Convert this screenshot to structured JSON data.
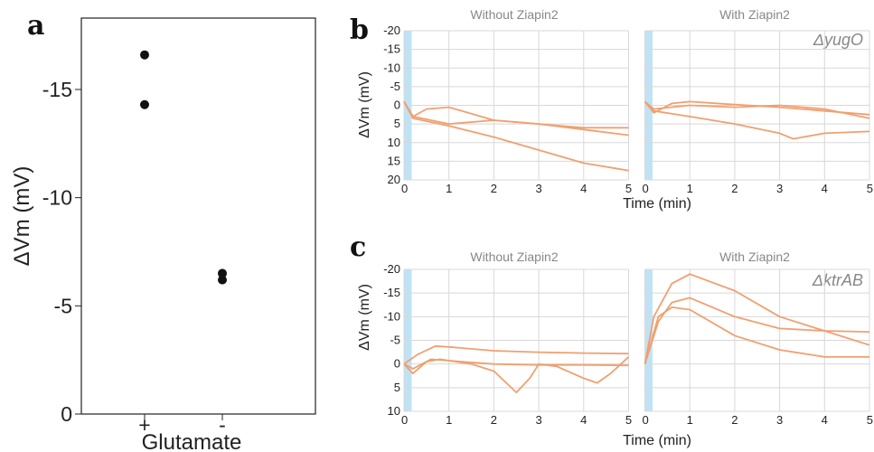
{
  "panels": {
    "a": "a",
    "b": "b",
    "c": "c"
  },
  "chart_data": [
    {
      "type": "scatter",
      "panel": "a",
      "ylabel": "ΔVm (mV)",
      "xlabel": "Glutamate",
      "categories": [
        "+",
        "-"
      ],
      "yticks": [
        "0",
        "-5",
        "-10",
        "-15"
      ],
      "ylim": [
        0,
        -18.3
      ],
      "points": [
        {
          "category": "+",
          "y": -16.6
        },
        {
          "category": "+",
          "y": -14.3
        },
        {
          "category": "-",
          "y": -6.5
        },
        {
          "category": "-",
          "y": -6.2
        }
      ]
    },
    {
      "type": "line",
      "panel": "b",
      "strain": "ΔyugO",
      "subtitles": [
        "Without Ziapin2",
        "With Ziapin2"
      ],
      "xlabel": "Time (min)",
      "ylabel": "ΔVm (mV)",
      "xticks": [
        "0",
        "1",
        "2",
        "3",
        "4",
        "5"
      ],
      "yticks": [
        "-20",
        "-15",
        "-10",
        "-5",
        "0",
        "5",
        "10",
        "15",
        "20"
      ],
      "xlim": [
        0,
        5
      ],
      "ylim": [
        -20,
        20
      ],
      "stimulus_window": [
        0,
        0.17
      ],
      "series_without": [
        [
          [
            0,
            -1
          ],
          [
            0.2,
            3
          ],
          [
            1,
            5
          ],
          [
            2,
            4
          ],
          [
            3,
            5
          ],
          [
            4,
            6
          ],
          [
            5,
            6
          ]
        ],
        [
          [
            0,
            -1
          ],
          [
            0.2,
            3
          ],
          [
            0.5,
            1
          ],
          [
            1,
            0.5
          ],
          [
            2,
            4
          ],
          [
            3,
            5
          ],
          [
            4,
            6.5
          ],
          [
            5,
            8
          ]
        ],
        [
          [
            0,
            -1
          ],
          [
            0.2,
            3.5
          ],
          [
            1,
            5.5
          ],
          [
            2,
            8.5
          ],
          [
            3,
            12
          ],
          [
            4,
            15.5
          ],
          [
            5,
            17.5
          ]
        ]
      ],
      "series_with": [
        [
          [
            0,
            -1
          ],
          [
            0.2,
            2
          ],
          [
            0.6,
            -0.5
          ],
          [
            1,
            -1
          ],
          [
            2,
            -0.2
          ],
          [
            3,
            0.5
          ],
          [
            4,
            1.5
          ],
          [
            5,
            2.5
          ]
        ],
        [
          [
            0,
            -1
          ],
          [
            0.2,
            1
          ],
          [
            1,
            0
          ],
          [
            2,
            0.5
          ],
          [
            3,
            0
          ],
          [
            4,
            1
          ],
          [
            5,
            3.5
          ]
        ],
        [
          [
            0,
            -1
          ],
          [
            0.2,
            1.5
          ],
          [
            1,
            3
          ],
          [
            2,
            5
          ],
          [
            3,
            7.5
          ],
          [
            3.3,
            9
          ],
          [
            4,
            7.5
          ],
          [
            5,
            7
          ]
        ]
      ]
    },
    {
      "type": "line",
      "panel": "c",
      "strain": "ΔktrAB",
      "subtitles": [
        "Without Ziapin2",
        "With Ziapin2"
      ],
      "xlabel": "Time (min)",
      "ylabel": "ΔVm (mV)",
      "xticks": [
        "0",
        "1",
        "2",
        "3",
        "4",
        "5"
      ],
      "yticks": [
        "-20",
        "-15",
        "-10",
        "-5",
        "0",
        "5",
        "10"
      ],
      "xlim": [
        0,
        5
      ],
      "ylim": [
        -20,
        10
      ],
      "stimulus_window": [
        0,
        0.17
      ],
      "series_without": [
        [
          [
            0,
            0
          ],
          [
            0.3,
            -2
          ],
          [
            0.7,
            -3.8
          ],
          [
            1,
            -3.6
          ],
          [
            2,
            -2.8
          ],
          [
            3,
            -2.5
          ],
          [
            4,
            -2.3
          ],
          [
            5,
            -2.2
          ]
        ],
        [
          [
            0,
            0
          ],
          [
            0.2,
            2
          ],
          [
            0.5,
            -0.5
          ],
          [
            0.8,
            -1
          ],
          [
            1.5,
            0
          ],
          [
            2,
            1.5
          ],
          [
            2.5,
            6
          ],
          [
            2.8,
            3
          ],
          [
            3,
            0
          ],
          [
            3.4,
            0.5
          ],
          [
            4,
            3
          ],
          [
            4.3,
            4
          ],
          [
            4.6,
            2
          ],
          [
            5,
            -1.5
          ]
        ],
        [
          [
            0,
            0
          ],
          [
            0.2,
            1
          ],
          [
            0.6,
            -1
          ],
          [
            1,
            -0.7
          ],
          [
            2,
            0
          ],
          [
            3,
            0.2
          ],
          [
            4,
            0.2
          ],
          [
            5,
            0.3
          ]
        ]
      ],
      "series_with": [
        [
          [
            0,
            0
          ],
          [
            0.2,
            -10
          ],
          [
            0.6,
            -17
          ],
          [
            1,
            -19
          ],
          [
            2,
            -15.5
          ],
          [
            3,
            -10
          ],
          [
            4,
            -7
          ],
          [
            5,
            -4
          ]
        ],
        [
          [
            0,
            0
          ],
          [
            0.3,
            -9
          ],
          [
            0.6,
            -13
          ],
          [
            1,
            -14
          ],
          [
            2,
            -10
          ],
          [
            3,
            -7.5
          ],
          [
            4,
            -7
          ],
          [
            5,
            -6.8
          ]
        ],
        [
          [
            0,
            0
          ],
          [
            0.3,
            -10
          ],
          [
            0.6,
            -12
          ],
          [
            1,
            -11.5
          ],
          [
            2,
            -6
          ],
          [
            3,
            -3
          ],
          [
            4,
            -1.5
          ],
          [
            5,
            -1.5
          ]
        ]
      ]
    }
  ],
  "colors": {
    "line": "#f0a070",
    "grid": "#d8d8d8",
    "stim": "#bfe3f5",
    "dot": "#111111"
  }
}
